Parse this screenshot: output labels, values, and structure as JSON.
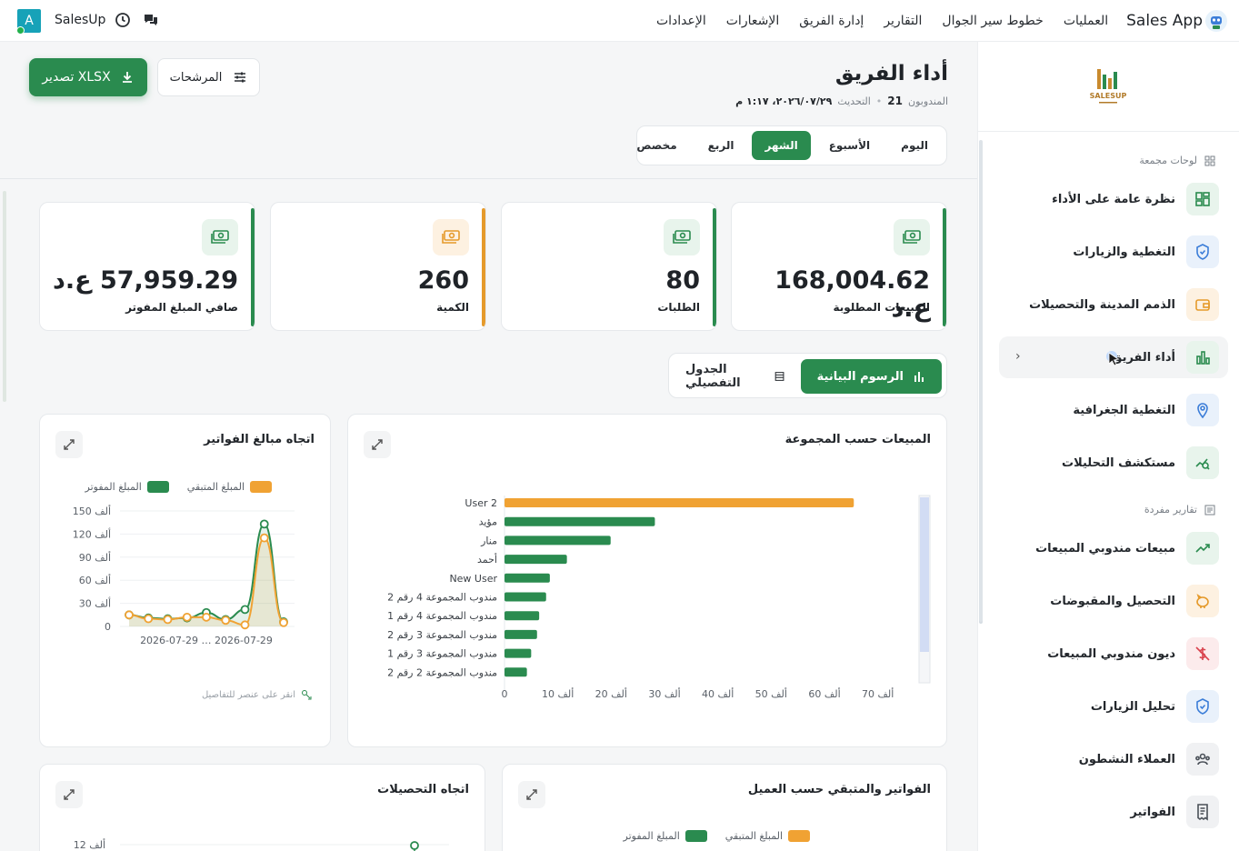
{
  "topbar": {
    "brand": "Sales App",
    "nav": [
      "العمليات",
      "خطوط سير الجوال",
      "التقارير",
      "إدارة الفريق",
      "الإشعارات",
      "الإعدادات"
    ],
    "user_label": "SalesUp",
    "avatar_letter": "A"
  },
  "sidebar": {
    "logo_text": "SALESUP",
    "section_aggregated": "لوحات مجمعة",
    "section_single": "تقارير مفردة",
    "items": [
      {
        "label": "نظرة عامة على الأداء",
        "icon": "dashboard-grid-icon",
        "tint": "#e8f4ec",
        "color": "#2a8b4f"
      },
      {
        "label": "التغطية والزيارات",
        "icon": "shield-check-icon",
        "tint": "#e9f1fb",
        "color": "#3b7dd8"
      },
      {
        "label": "الذمم المدينة والتحصيلات",
        "icon": "wallet-icon",
        "tint": "#fdf1e1",
        "color": "#e59a2b"
      },
      {
        "label": "أداء الفريق",
        "icon": "bar-chart-icon",
        "tint": "#e8f4ec",
        "color": "#2a8b4f",
        "active": true
      },
      {
        "label": "التغطية الجغرافية",
        "icon": "map-pin-icon",
        "tint": "#e9f1fb",
        "color": "#3b7dd8"
      },
      {
        "label": "مستكشف التحليلات",
        "icon": "trend-search-icon",
        "tint": "#e8f4ec",
        "color": "#2a8b4f"
      },
      {
        "label": "مبيعات مندوبي المبيعات",
        "icon": "trending-up-icon",
        "tint": "#e8f4ec",
        "color": "#2a8b4f"
      },
      {
        "label": "التحصيل والمقبوضات",
        "icon": "piggy-bank-icon",
        "tint": "#fdf1e1",
        "color": "#e59a2b"
      },
      {
        "label": "ديون مندوبي المبيعات",
        "icon": "no-money-icon",
        "tint": "#fcebec",
        "color": "#d9434e"
      },
      {
        "label": "تحليل الزيارات",
        "icon": "shield-check-icon",
        "tint": "#e9f1fb",
        "color": "#3b7dd8"
      },
      {
        "label": "العملاء النشطون",
        "icon": "users-icon",
        "tint": "#f0f1f3",
        "color": "#4a5058"
      },
      {
        "label": "الفواتير",
        "icon": "receipt-icon",
        "tint": "#f0f1f3",
        "color": "#4a5058"
      }
    ]
  },
  "header": {
    "title": "أداء الفريق",
    "reps_label": "المندوبون",
    "reps_count": "21",
    "updated_label": "التحديث",
    "updated_value": "٢٠٢٦/٠٧/٢٩، ١:١٧ م",
    "export_label": "تصدير XLSX",
    "filters_label": "المرشحات"
  },
  "periods": [
    {
      "label": "اليوم",
      "active": false
    },
    {
      "label": "الأسبوع",
      "active": false
    },
    {
      "label": "الشهر",
      "active": true
    },
    {
      "label": "الربع",
      "active": false
    },
    {
      "label": "مخصص",
      "active": false
    }
  ],
  "kpis": [
    {
      "label": "المبيعات المطلوبة",
      "value": "168,004.62 ع.د",
      "accent": "#2a8b4f",
      "tint": "#e8f4ec"
    },
    {
      "label": "الطلبات",
      "value": "80",
      "accent": "#2a8b4f",
      "tint": "#e8f4ec"
    },
    {
      "label": "الكمية",
      "value": "260",
      "accent": "#e59a2b",
      "tint": "#fdf1e1"
    },
    {
      "label": "صافي المبلغ المفوتر",
      "value": "57,959.29 ع.د",
      "accent": "#2a8b4f",
      "tint": "#e8f4ec"
    }
  ],
  "view_toggle": {
    "charts": "الرسوم البيانية",
    "table": "الجدول التفصيلي"
  },
  "cards": {
    "sales_by_group": "المبيعات حسب المجموعة",
    "invoice_trend": "اتجاه مبالغ الفواتير",
    "collections_trend": "اتجاه التحصيلات",
    "invoices_by_customer": "الفواتير والمتبقي حسب العميل",
    "click_hint": "انقر على عنصر للتفاصيل"
  },
  "legend": {
    "billed": "المبلغ المفوتر",
    "remaining": "المبلغ المتبقي"
  },
  "colors": {
    "green": "#2a8b4f",
    "orange": "#f0a233"
  },
  "chart_data": [
    {
      "type": "bar",
      "orientation": "horizontal",
      "title": "المبيعات حسب المجموعة",
      "categories": [
        "User 2",
        "مؤيد",
        "منار",
        "أحمد",
        "New User",
        "مندوب المجموعة 4 رقم 2",
        "مندوب المجموعة 4 رقم 1",
        "مندوب المجموعة 3 رقم 2",
        "مندوب المجموعة 3 رقم 1",
        "مندوب المجموعة 2 رقم 2"
      ],
      "values": [
        65500,
        28200,
        19900,
        11700,
        8500,
        7800,
        6500,
        6100,
        5000,
        4200
      ],
      "xlim": [
        0,
        75000
      ],
      "ticks": [
        "0",
        "10 ألف",
        "20 ألف",
        "30 ألف",
        "40 ألف",
        "50 ألف",
        "60 ألف",
        "70 ألف"
      ],
      "tick_values": [
        0,
        10000,
        20000,
        30000,
        40000,
        50000,
        60000,
        70000
      ]
    },
    {
      "type": "area",
      "title": "اتجاه مبالغ الفواتير",
      "x_label_text": "2026-07-29 … 2026-07-29",
      "series": [
        {
          "name": "المبلغ المفوتر",
          "values": [
            15000,
            11000,
            10000,
            11000,
            18000,
            9000,
            22000,
            133000,
            6000
          ]
        },
        {
          "name": "المبلغ المتبقي",
          "values": [
            15000,
            10000,
            9000,
            12000,
            12000,
            8000,
            2000,
            115000,
            5000
          ]
        }
      ],
      "ylim": [
        0,
        150000
      ],
      "ticks": [
        "0",
        "30 ألف",
        "60 ألف",
        "90 ألف",
        "120 ألف",
        "150 ألف"
      ],
      "tick_values": [
        0,
        30000,
        60000,
        90000,
        120000,
        150000
      ]
    },
    {
      "type": "line",
      "title": "اتجاه التحصيلات",
      "ticks": [
        "12 ألف"
      ]
    }
  ]
}
